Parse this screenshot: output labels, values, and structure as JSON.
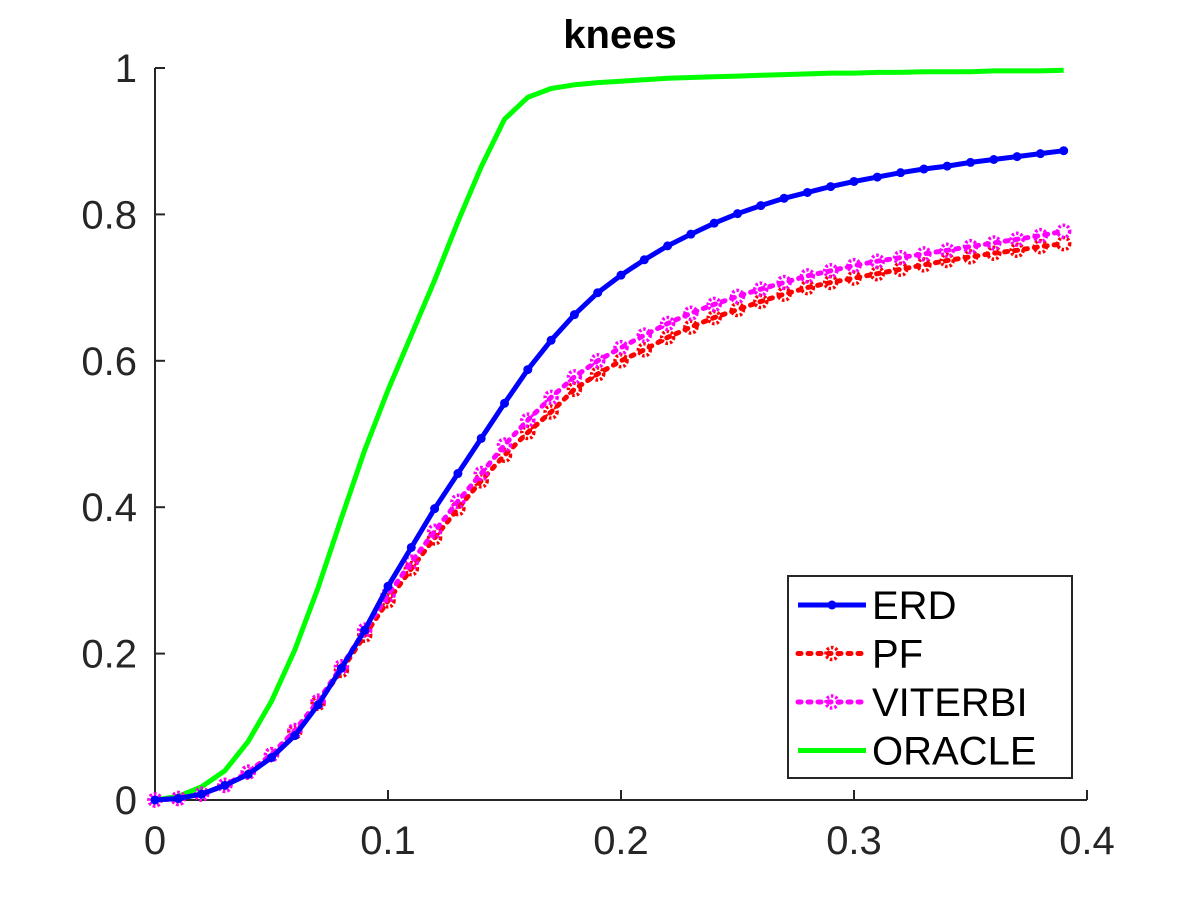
{
  "chart_data": {
    "type": "line",
    "title": "knees",
    "xlabel": "",
    "ylabel": "",
    "xlim": [
      0,
      0.4
    ],
    "ylim": [
      0,
      1
    ],
    "xticks": [
      0,
      0.1,
      0.2,
      0.3,
      0.4
    ],
    "xtick_labels": [
      "0",
      "0.1",
      "0.2",
      "0.3",
      "0.4"
    ],
    "yticks": [
      0,
      0.2,
      0.4,
      0.6,
      0.8,
      1
    ],
    "ytick_labels": [
      "0",
      "0.2",
      "0.4",
      "0.6",
      "0.8",
      "1"
    ],
    "grid": false,
    "legend_position": "bottom-right",
    "x": [
      0,
      0.01,
      0.02,
      0.03,
      0.04,
      0.05,
      0.06,
      0.07,
      0.08,
      0.09,
      0.1,
      0.11,
      0.12,
      0.13,
      0.14,
      0.15,
      0.16,
      0.17,
      0.18,
      0.19,
      0.2,
      0.21,
      0.22,
      0.23,
      0.24,
      0.25,
      0.26,
      0.27,
      0.28,
      0.29,
      0.3,
      0.31,
      0.32,
      0.33,
      0.34,
      0.35,
      0.36,
      0.37,
      0.38,
      0.39
    ],
    "series": [
      {
        "name": "ERD",
        "color": "#0000ff",
        "line_style": "solid",
        "marker": "dot",
        "values": [
          0,
          0.002,
          0.008,
          0.02,
          0.035,
          0.058,
          0.088,
          0.13,
          0.18,
          0.232,
          0.292,
          0.345,
          0.398,
          0.446,
          0.494,
          0.542,
          0.588,
          0.628,
          0.663,
          0.693,
          0.717,
          0.738,
          0.757,
          0.773,
          0.788,
          0.801,
          0.812,
          0.822,
          0.83,
          0.838,
          0.845,
          0.851,
          0.857,
          0.862,
          0.866,
          0.871,
          0.875,
          0.879,
          0.883,
          0.887
        ]
      },
      {
        "name": "PF",
        "color": "#ff0000",
        "line_style": "dotted",
        "marker": "circle",
        "values": [
          0,
          0.002,
          0.008,
          0.02,
          0.038,
          0.062,
          0.093,
          0.132,
          0.177,
          0.225,
          0.272,
          0.316,
          0.358,
          0.398,
          0.436,
          0.471,
          0.502,
          0.53,
          0.561,
          0.582,
          0.6,
          0.615,
          0.632,
          0.646,
          0.659,
          0.67,
          0.681,
          0.691,
          0.7,
          0.707,
          0.713,
          0.719,
          0.725,
          0.731,
          0.737,
          0.742,
          0.747,
          0.751,
          0.756,
          0.76
        ]
      },
      {
        "name": "VITERBI",
        "color": "#ff00ff",
        "line_style": "dotted",
        "marker": "circle",
        "values": [
          0,
          0.002,
          0.008,
          0.02,
          0.038,
          0.062,
          0.095,
          0.135,
          0.182,
          0.232,
          0.28,
          0.325,
          0.367,
          0.408,
          0.446,
          0.485,
          0.519,
          0.55,
          0.578,
          0.6,
          0.618,
          0.635,
          0.651,
          0.665,
          0.677,
          0.688,
          0.698,
          0.707,
          0.716,
          0.723,
          0.73,
          0.736,
          0.741,
          0.746,
          0.751,
          0.756,
          0.761,
          0.766,
          0.771,
          0.777
        ]
      },
      {
        "name": "ORACLE",
        "color": "#00ff00",
        "line_style": "solid",
        "marker": "none",
        "values": [
          0,
          0.005,
          0.018,
          0.04,
          0.08,
          0.135,
          0.205,
          0.29,
          0.385,
          0.478,
          0.56,
          0.635,
          0.71,
          0.79,
          0.865,
          0.93,
          0.96,
          0.972,
          0.977,
          0.98,
          0.982,
          0.984,
          0.986,
          0.987,
          0.988,
          0.989,
          0.99,
          0.991,
          0.992,
          0.993,
          0.993,
          0.994,
          0.994,
          0.995,
          0.995,
          0.995,
          0.996,
          0.996,
          0.996,
          0.997
        ]
      }
    ]
  }
}
